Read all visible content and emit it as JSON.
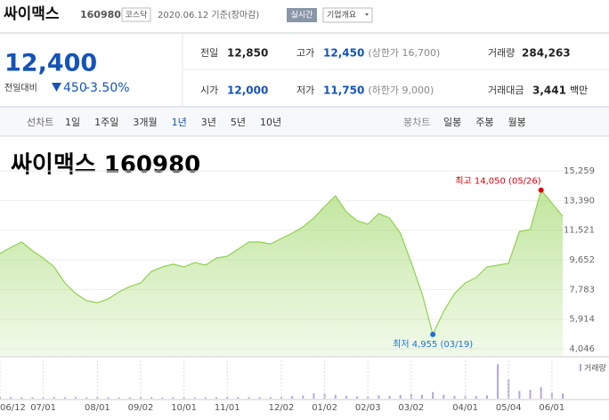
{
  "header": {
    "name": "싸이맥스",
    "code": "160980",
    "market": "코스닥",
    "date": "2020.06.12 기준(장마감)",
    "realtime": "실시간",
    "overview": "기업개요"
  },
  "quote": {
    "price": "12,400",
    "change_label": "전일대비",
    "change": "450",
    "rate": "-3.50%",
    "rows": [
      [
        {
          "label": "전일",
          "value": "12,850"
        },
        {
          "label": "고가",
          "value": "12,450",
          "note": "(상한가 16,700)"
        },
        {
          "label": "거래량",
          "value": "284,263"
        }
      ],
      [
        {
          "label": "시가",
          "value": "12,000"
        },
        {
          "label": "저가",
          "value": "11,750",
          "note": "(하한가 9,000)"
        },
        {
          "label": "거래대금",
          "value": "3,441",
          "note": "백만"
        }
      ]
    ]
  },
  "tabs": {
    "line_label": "선차트",
    "line": [
      "1일",
      "1주일",
      "3개월",
      "1년",
      "3년",
      "5년",
      "10년"
    ],
    "candle_label": "봉차트",
    "candle": [
      "일봉",
      "주봉",
      "월봉"
    ]
  },
  "chart_data": {
    "type": "area",
    "title": "싸이맥스 160980",
    "color": "#8fd14f",
    "grid": true,
    "categories": [
      "06/12",
      null,
      null,
      null,
      "07/01",
      null,
      null,
      null,
      null,
      "08/01",
      null,
      null,
      null,
      "09/02",
      null,
      null,
      null,
      "10/01",
      null,
      null,
      null,
      "11/01",
      null,
      null,
      null,
      null,
      "12/02",
      null,
      null,
      null,
      "01/02",
      null,
      null,
      null,
      "02/03",
      null,
      null,
      null,
      "03/02",
      null,
      null,
      null,
      null,
      "04/01",
      null,
      null,
      null,
      "05/04",
      null,
      null,
      null,
      "06/01",
      null
    ],
    "values": [
      10050,
      10440,
      10780,
      10220,
      9770,
      9210,
      8200,
      7530,
      7080,
      6960,
      7190,
      7640,
      7970,
      8200,
      8930,
      9210,
      9380,
      9210,
      9490,
      9320,
      9770,
      9880,
      10330,
      10780,
      10780,
      10660,
      11000,
      11340,
      11730,
      12290,
      13020,
      13690,
      12680,
      12120,
      11900,
      12570,
      12290,
      11340,
      9490,
      7530,
      4955,
      6410,
      7530,
      8200,
      8540,
      9210,
      9320,
      9430,
      11450,
      11560,
      14050,
      13240,
      12400
    ],
    "ylim": [
      3600,
      17170
    ],
    "yticks": [
      {
        "value": 15259,
        "label": "15,259"
      },
      {
        "value": 13390,
        "label": "13,390"
      },
      {
        "value": 11521,
        "label": "11,521"
      },
      {
        "value": 9652,
        "label": "9,652"
      },
      {
        "value": 7783,
        "label": "7,783"
      },
      {
        "value": 5914,
        "label": "5,914"
      },
      {
        "value": 4046,
        "label": "4,046"
      }
    ],
    "annotations": [
      {
        "text": "최고 14,050 (05/26)",
        "value": 14050,
        "color": "#e0000b"
      },
      {
        "text": "최저 4,955 (03/19)",
        "value": 4955,
        "color": "#1f6fd1"
      }
    ],
    "volume": {
      "name": "거래량",
      "color": "#b3a6d6",
      "ylim": [
        0,
        3000000
      ],
      "values": [
        150000,
        120000,
        110000,
        100000,
        90000,
        130000,
        110000,
        120000,
        100000,
        160000,
        110000,
        90000,
        100000,
        130000,
        120000,
        90000,
        100000,
        110000,
        90000,
        100000,
        120000,
        140000,
        130000,
        120000,
        110000,
        120000,
        140000,
        200000,
        250000,
        420000,
        380000,
        300000,
        220000,
        180000,
        200000,
        260000,
        210000,
        280000,
        350000,
        300000,
        520000,
        300000,
        220000,
        250000,
        200000,
        260000,
        2700000,
        1500000,
        600000,
        700000,
        900000,
        500000,
        400000
      ]
    }
  }
}
